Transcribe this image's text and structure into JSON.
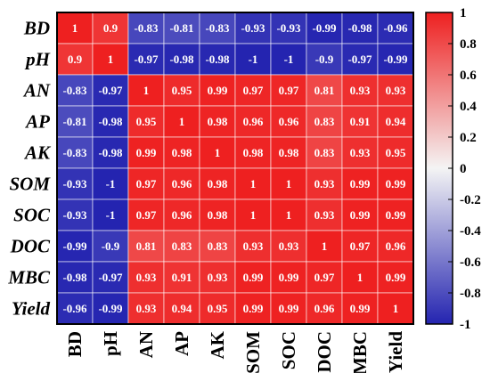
{
  "chart_data": {
    "type": "heatmap",
    "row_labels": [
      "BD",
      "pH",
      "AN",
      "AP",
      "AK",
      "SOM",
      "SOC",
      "DOC",
      "MBC",
      "Yield"
    ],
    "col_labels": [
      "BD",
      "pH",
      "AN",
      "AP",
      "AK",
      "SOM",
      "SOC",
      "DOC",
      "MBC",
      "Yield"
    ],
    "values": [
      [
        1,
        0.9,
        -0.83,
        -0.81,
        -0.83,
        -0.93,
        -0.93,
        -0.99,
        -0.98,
        -0.96
      ],
      [
        0.9,
        1,
        -0.97,
        -0.98,
        -0.98,
        -1,
        -1,
        -0.9,
        -0.97,
        -0.99
      ],
      [
        -0.83,
        -0.97,
        1,
        0.95,
        0.99,
        0.97,
        0.97,
        0.81,
        0.93,
        0.93
      ],
      [
        -0.81,
        -0.98,
        0.95,
        1,
        0.98,
        0.96,
        0.96,
        0.83,
        0.91,
        0.94
      ],
      [
        -0.83,
        -0.98,
        0.99,
        0.98,
        1,
        0.98,
        0.98,
        0.83,
        0.93,
        0.95
      ],
      [
        -0.93,
        -1,
        0.97,
        0.96,
        0.98,
        1,
        1,
        0.93,
        0.99,
        0.99
      ],
      [
        -0.93,
        -1,
        0.97,
        0.96,
        0.98,
        1,
        1,
        0.93,
        0.99,
        0.99
      ],
      [
        -0.99,
        -0.9,
        0.81,
        0.83,
        0.83,
        0.93,
        0.93,
        1,
        0.97,
        0.96
      ],
      [
        -0.98,
        -0.97,
        0.93,
        0.91,
        0.93,
        0.99,
        0.99,
        0.97,
        1,
        0.99
      ],
      [
        -0.96,
        -0.99,
        0.93,
        0.94,
        0.95,
        0.99,
        0.99,
        0.96,
        0.99,
        1
      ]
    ],
    "value_range": [
      -1,
      1
    ],
    "colorbar_ticks": [
      "1",
      "0.8",
      "0.6",
      "0.4",
      "0.2",
      "0",
      "-0.2",
      "-0.4",
      "-0.6",
      "-0.8",
      "-1"
    ],
    "colormap": {
      "negative": "#2424b0",
      "neutral": "#f4f4f4",
      "positive": "#ee2020"
    },
    "title": "",
    "xlabel": "",
    "ylabel": "",
    "grid": true,
    "legend": "colorbar-right"
  }
}
